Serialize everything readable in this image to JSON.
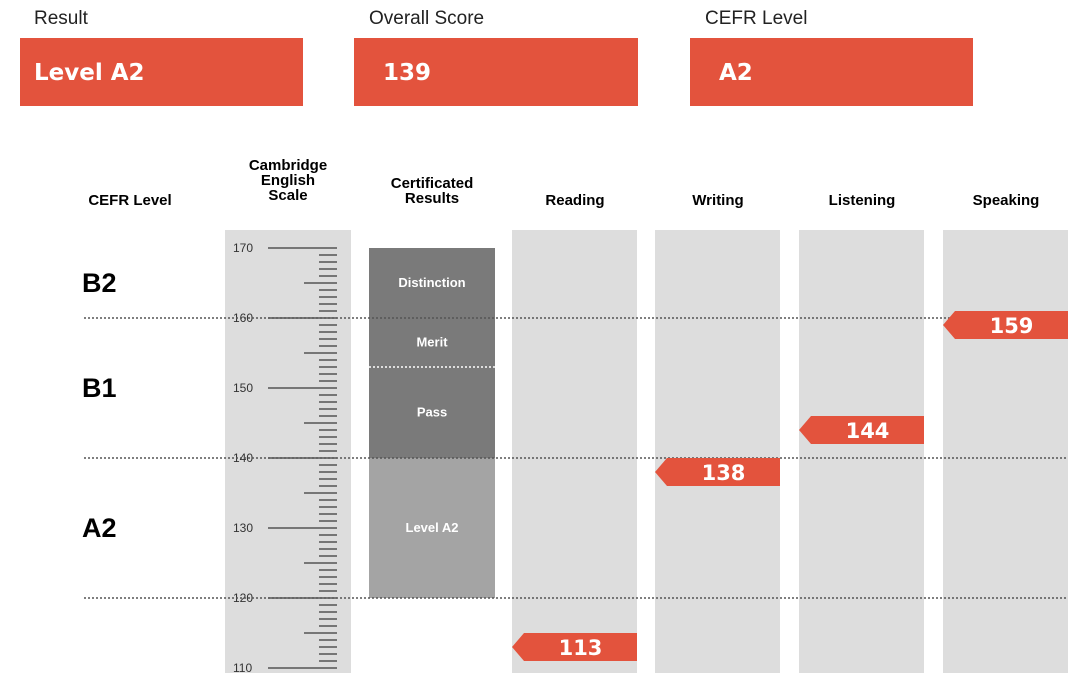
{
  "result": {
    "label": "Result",
    "value": "Level A2"
  },
  "overall": {
    "label": "Overall Score",
    "value": "139"
  },
  "cefr": {
    "label": "CEFR Level",
    "value": "A2"
  },
  "chart_data": {
    "type": "bar",
    "scale_label": "Cambridge English Scale",
    "ylim": [
      110,
      170
    ],
    "major_ticks": [
      110,
      120,
      130,
      140,
      150,
      160,
      170
    ],
    "column_headers": {
      "cefr": "CEFR Level",
      "scale_line1": "Cambridge",
      "scale_line2": "English",
      "scale_line3": "Scale",
      "cert_line1": "Certificated",
      "cert_line2": "Results"
    },
    "cefr_levels": [
      {
        "name": "B2",
        "from": 160,
        "to": 170
      },
      {
        "name": "B1",
        "from": 140,
        "to": 160
      },
      {
        "name": "A2",
        "from": 120,
        "to": 140
      }
    ],
    "level_boundaries": [
      160,
      140,
      120
    ],
    "certificated_bands": [
      {
        "name": "Distinction",
        "from": 160,
        "to": 170,
        "color": "#7a7a7a"
      },
      {
        "name": "Merit",
        "from": 153,
        "to": 160,
        "color": "#7a7a7a"
      },
      {
        "name": "Pass",
        "from": 140,
        "to": 153,
        "color": "#7a7a7a"
      },
      {
        "name": "Level A2",
        "from": 120,
        "to": 140,
        "color": "#a4a4a4"
      }
    ],
    "categories": [
      "Reading",
      "Writing",
      "Listening",
      "Speaking"
    ],
    "values": [
      113,
      138,
      144,
      159
    ],
    "marker_color": "#e3533d",
    "column_color": "#dddddd"
  }
}
